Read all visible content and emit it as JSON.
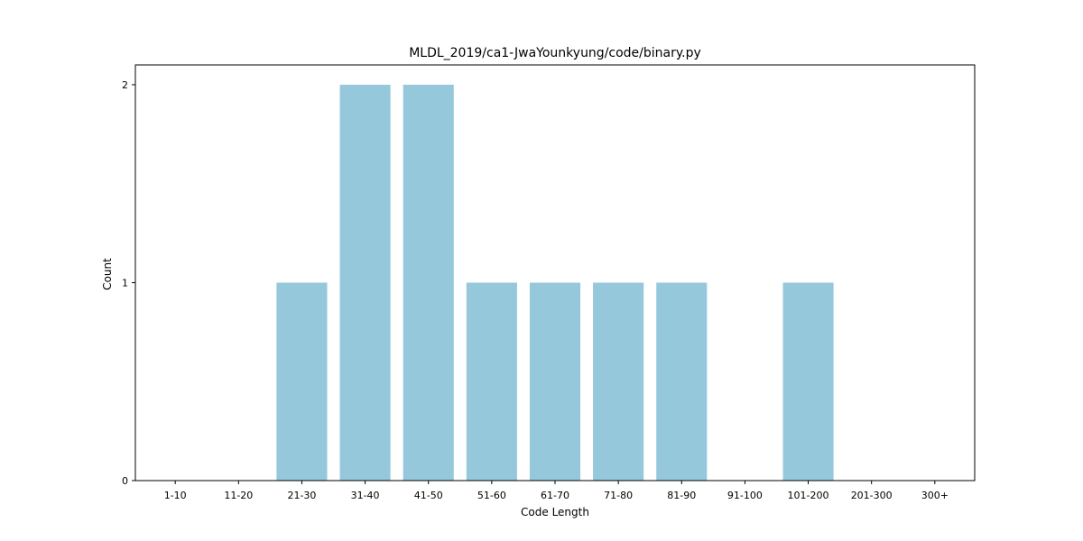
{
  "chart_data": {
    "type": "bar",
    "title": "MLDL_2019/ca1-JwaYounkyung/code/binary.py",
    "xlabel": "Code Length",
    "ylabel": "Count",
    "categories": [
      "1-10",
      "11-20",
      "21-30",
      "31-40",
      "41-50",
      "51-60",
      "61-70",
      "71-80",
      "81-90",
      "91-100",
      "101-200",
      "201-300",
      "300+"
    ],
    "values": [
      0,
      0,
      1,
      2,
      2,
      1,
      1,
      1,
      1,
      0,
      1,
      0,
      0
    ],
    "ylim": [
      0,
      2.1
    ],
    "yticks": [
      0,
      1,
      2
    ],
    "bar_color": "#96c8dc",
    "grid": false,
    "legend": "none"
  }
}
